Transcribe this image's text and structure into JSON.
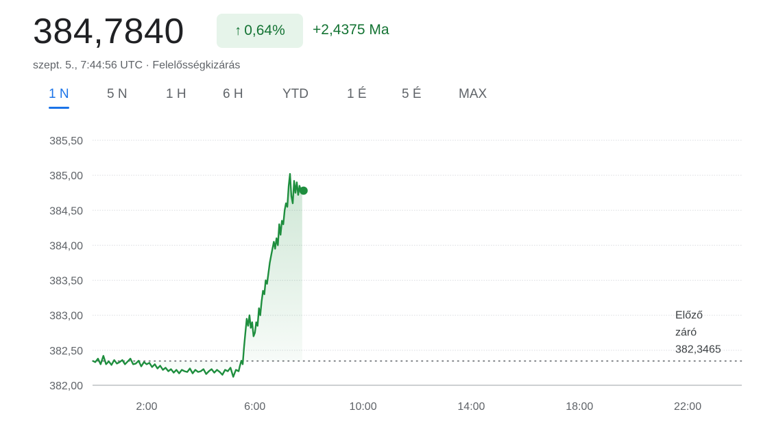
{
  "header": {
    "price": "384,7840",
    "change_pct": "0,64%",
    "change_abs": "+2,4375 Ma",
    "timestamp": "szept. 5., 7:44:56 UTC",
    "separator": "·",
    "disclaimer": "Felelősségkizárás"
  },
  "tabs": [
    {
      "label": "1 N",
      "active": true
    },
    {
      "label": "5 N",
      "active": false
    },
    {
      "label": "1 H",
      "active": false
    },
    {
      "label": "6 H",
      "active": false
    },
    {
      "label": "YTD",
      "active": false
    },
    {
      "label": "1 É",
      "active": false
    },
    {
      "label": "5 É",
      "active": false
    },
    {
      "label": "MAX",
      "active": false
    }
  ],
  "colors": {
    "up": "#1e8e3e",
    "badge_bg": "#e6f4ea",
    "active_tab": "#1a73e8",
    "grid": "#dadce0"
  },
  "icons": {
    "change": "arrow-up-icon"
  },
  "chart_data": {
    "type": "line",
    "x_range": [
      "00:00",
      "24:00"
    ],
    "ylim": [
      382.0,
      385.5
    ],
    "y_ticks": [
      "385,50",
      "385,00",
      "384,50",
      "384,00",
      "383,50",
      "383,00",
      "382,50",
      "382,00"
    ],
    "y_tick_values": [
      385.5,
      385.0,
      384.5,
      384.0,
      383.5,
      383.0,
      382.5,
      382.0
    ],
    "x_ticks": [
      "2:00",
      "6:00",
      "10:00",
      "14:00",
      "18:00",
      "22:00"
    ],
    "x_tick_hours": [
      2,
      6,
      10,
      14,
      18,
      22
    ],
    "previous_close": {
      "label_lines": [
        "Előző",
        "záró",
        "382,3465"
      ],
      "value": 382.3465
    },
    "series": [
      {
        "x": [
          0.0,
          0.1,
          0.2,
          0.3,
          0.4,
          0.5,
          0.6,
          0.7,
          0.8,
          0.9,
          1.0,
          1.1,
          1.2,
          1.3,
          1.4,
          1.5,
          1.6,
          1.7,
          1.8,
          1.9,
          2.0,
          2.1,
          2.2,
          2.3,
          2.4,
          2.5,
          2.6,
          2.7,
          2.8,
          2.9,
          3.0,
          3.1,
          3.2,
          3.3,
          3.4,
          3.5,
          3.6,
          3.7,
          3.8,
          3.9,
          4.0,
          4.1,
          4.2,
          4.3,
          4.4,
          4.5,
          4.6,
          4.7,
          4.8,
          4.9,
          5.0,
          5.1,
          5.2,
          5.3,
          5.4,
          5.45,
          5.5,
          5.55,
          5.6,
          5.65,
          5.7,
          5.75,
          5.8,
          5.85,
          5.9,
          5.95,
          6.0,
          6.05,
          6.1,
          6.15,
          6.2,
          6.25,
          6.3,
          6.35,
          6.4,
          6.45,
          6.5,
          6.55,
          6.6,
          6.65,
          6.7,
          6.75,
          6.8,
          6.85,
          6.9,
          6.95,
          7.0,
          7.05,
          7.1,
          7.15,
          7.2,
          7.25,
          7.3,
          7.35,
          7.4,
          7.45,
          7.5,
          7.55,
          7.6,
          7.65,
          7.7,
          7.75
        ],
        "y": [
          382.35,
          382.33,
          382.38,
          382.3,
          382.42,
          382.3,
          382.34,
          382.29,
          382.36,
          382.31,
          382.33,
          382.36,
          382.3,
          382.34,
          382.38,
          382.3,
          382.31,
          382.35,
          382.27,
          382.33,
          382.3,
          382.32,
          382.26,
          382.3,
          382.24,
          382.28,
          382.22,
          382.25,
          382.2,
          382.23,
          382.18,
          382.22,
          382.17,
          382.22,
          382.2,
          382.19,
          382.24,
          382.17,
          382.22,
          382.19,
          382.2,
          382.23,
          382.16,
          382.2,
          382.23,
          382.18,
          382.22,
          382.19,
          382.15,
          382.22,
          382.2,
          382.25,
          382.12,
          382.22,
          382.2,
          382.28,
          382.35,
          382.3,
          382.55,
          382.75,
          382.95,
          382.85,
          383.0,
          382.82,
          382.9,
          382.7,
          382.75,
          382.9,
          382.85,
          383.1,
          383.0,
          383.2,
          383.35,
          383.3,
          383.5,
          383.45,
          383.6,
          383.75,
          383.85,
          383.95,
          384.05,
          383.95,
          384.1,
          384.0,
          384.3,
          384.15,
          384.35,
          384.3,
          384.5,
          384.6,
          384.55,
          384.85,
          385.02,
          384.7,
          384.6,
          384.92,
          384.75,
          384.9,
          384.72,
          384.85,
          384.78,
          384.78
        ]
      }
    ]
  }
}
